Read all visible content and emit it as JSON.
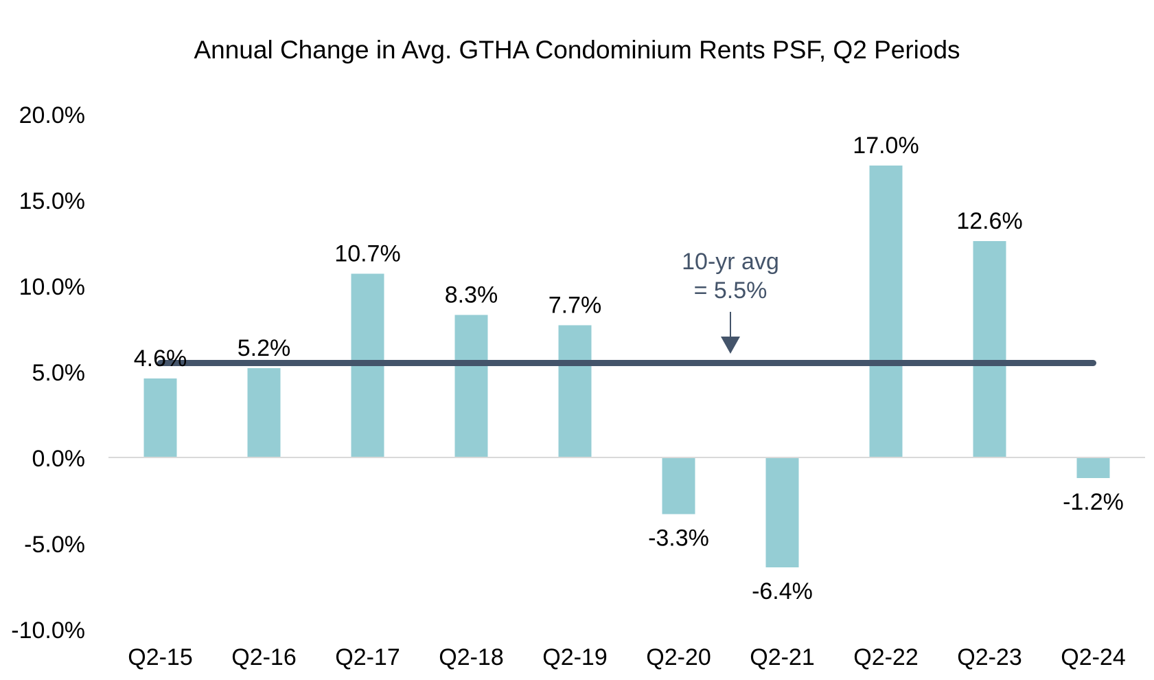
{
  "chart_data": {
    "type": "bar",
    "title": "Annual Change in Avg. GTHA Condominium Rents PSF, Q2 Periods",
    "xlabel": "",
    "ylabel": "",
    "categories": [
      "Q2-15",
      "Q2-16",
      "Q2-17",
      "Q2-18",
      "Q2-19",
      "Q2-20",
      "Q2-21",
      "Q2-22",
      "Q2-23",
      "Q2-24"
    ],
    "values": [
      4.6,
      5.2,
      10.7,
      8.3,
      7.7,
      -3.3,
      -6.4,
      17.0,
      12.6,
      -1.2
    ],
    "data_labels": [
      "4.6%",
      "5.2%",
      "10.7%",
      "8.3%",
      "7.7%",
      "-3.3%",
      "-6.4%",
      "17.0%",
      "12.6%",
      "-1.2%"
    ],
    "ylim": [
      -10,
      20
    ],
    "yticks": [
      20,
      15,
      10,
      5,
      0,
      -5,
      -10
    ],
    "ytick_labels": [
      "20.0%",
      "15.0%",
      "10.0%",
      "5.0%",
      "0.0%",
      "-5.0%",
      "-10.0%"
    ],
    "grid": false,
    "legend": "none",
    "reference_line": {
      "value": 5.5,
      "label_lines": [
        "10-yr avg",
        "= 5.5%"
      ]
    },
    "colors": {
      "bar": "#95CDD4",
      "avg_line": "#44546A",
      "annotation": "#44546A",
      "axis": "#D9D9D9",
      "text": "#000000"
    }
  }
}
